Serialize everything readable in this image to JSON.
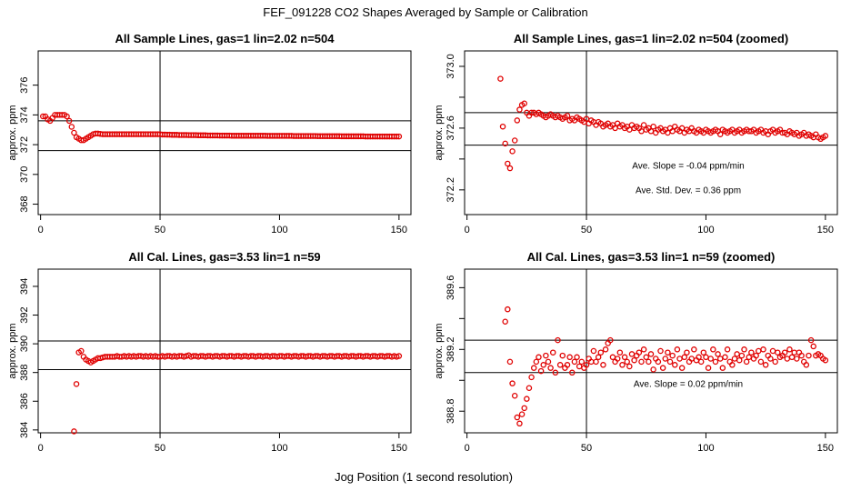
{
  "main_title": "FEF_091228  CO2 Shapes Averaged by Sample or Calibration",
  "xlabel": "Jog Position (1 second resolution)",
  "colors": {
    "points": "#e00000",
    "lines": "#000000"
  },
  "chart_data": [
    {
      "type": "scatter",
      "title": "All Sample Lines, gas=1 lin=2.02 n=504",
      "ylabel": "approx. ppm",
      "xlim": [
        -1,
        155
      ],
      "ylim": [
        367.3,
        378.3
      ],
      "xticks": [
        "0",
        "50",
        "100",
        "150"
      ],
      "xtick_values": [
        0,
        50,
        100,
        150
      ],
      "yticks": [
        "368",
        "370",
        "372",
        "374",
        "376"
      ],
      "ytick_values": [
        368,
        370,
        372,
        374,
        376
      ],
      "vline": 50,
      "hlines": [
        373.6,
        371.6
      ],
      "x": [
        1,
        2,
        3,
        4,
        5,
        6,
        7,
        8,
        9,
        10,
        11,
        12,
        13,
        14,
        15,
        16,
        17,
        18,
        19,
        20,
        21,
        22,
        23,
        24,
        25,
        26,
        27,
        28,
        29,
        30,
        31,
        32,
        33,
        34,
        35,
        36,
        37,
        38,
        39,
        40,
        41,
        42,
        43,
        44,
        45,
        46,
        47,
        48,
        49,
        50,
        51,
        52,
        53,
        54,
        55,
        56,
        57,
        58,
        59,
        60,
        61,
        62,
        63,
        64,
        65,
        66,
        67,
        68,
        69,
        70,
        71,
        72,
        73,
        74,
        75,
        76,
        77,
        78,
        79,
        80,
        81,
        82,
        83,
        84,
        85,
        86,
        87,
        88,
        89,
        90,
        91,
        92,
        93,
        94,
        95,
        96,
        97,
        98,
        99,
        100,
        101,
        102,
        103,
        104,
        105,
        106,
        107,
        108,
        109,
        110,
        111,
        112,
        113,
        114,
        115,
        116,
        117,
        118,
        119,
        120,
        121,
        122,
        123,
        124,
        125,
        126,
        127,
        128,
        129,
        130,
        131,
        132,
        133,
        134,
        135,
        136,
        137,
        138,
        139,
        140,
        141,
        142,
        143,
        144,
        145,
        146,
        147,
        148,
        149,
        150
      ],
      "y": [
        373.9,
        373.9,
        373.7,
        373.6,
        373.8,
        374.0,
        374.0,
        374.0,
        374.0,
        374.0,
        373.9,
        373.6,
        373.2,
        372.8,
        372.5,
        372.4,
        372.3,
        372.3,
        372.4,
        372.5,
        372.6,
        372.7,
        372.75,
        372.75,
        372.72,
        372.7,
        372.7,
        372.7,
        372.7,
        372.7,
        372.7,
        372.7,
        372.7,
        372.7,
        372.7,
        372.7,
        372.7,
        372.7,
        372.7,
        372.7,
        372.7,
        372.7,
        372.7,
        372.7,
        372.7,
        372.7,
        372.7,
        372.7,
        372.7,
        372.7,
        372.68,
        372.68,
        372.67,
        372.67,
        372.66,
        372.66,
        372.66,
        372.65,
        372.65,
        372.65,
        372.65,
        372.64,
        372.64,
        372.64,
        372.64,
        372.63,
        372.63,
        372.63,
        372.63,
        372.62,
        372.62,
        372.62,
        372.62,
        372.62,
        372.61,
        372.61,
        372.61,
        372.61,
        372.61,
        372.6,
        372.6,
        372.6,
        372.6,
        372.6,
        372.6,
        372.6,
        372.6,
        372.6,
        372.6,
        372.6,
        372.6,
        372.6,
        372.6,
        372.6,
        372.59,
        372.59,
        372.59,
        372.59,
        372.59,
        372.59,
        372.59,
        372.59,
        372.59,
        372.59,
        372.59,
        372.58,
        372.58,
        372.58,
        372.58,
        372.58,
        372.58,
        372.58,
        372.58,
        372.58,
        372.58,
        372.57,
        372.57,
        372.57,
        372.57,
        372.57,
        372.57,
        372.57,
        372.57,
        372.57,
        372.57,
        372.56,
        372.56,
        372.56,
        372.56,
        372.56,
        372.56,
        372.56,
        372.56,
        372.56,
        372.56,
        372.55,
        372.55,
        372.55,
        372.55,
        372.55,
        372.55,
        372.55,
        372.55,
        372.55,
        372.55,
        372.55,
        372.55,
        372.55,
        372.55,
        372.55
      ],
      "annotations": []
    },
    {
      "type": "scatter",
      "title": "All Sample Lines, gas=1 lin=2.02 n=504 (zoomed)",
      "ylabel": "approx. ppm",
      "xlim": [
        -1,
        155
      ],
      "ylim": [
        372.04,
        373.1
      ],
      "xticks": [
        "0",
        "50",
        "100",
        "150"
      ],
      "xtick_values": [
        0,
        50,
        100,
        150
      ],
      "yticks": [
        "372.2",
        "372.6",
        "373.0"
      ],
      "ytick_values": [
        372.2,
        372.6,
        373.0
      ],
      "ytick_minor": [
        372.4,
        372.8
      ],
      "vline": 50,
      "hlines": [
        372.7,
        372.49
      ],
      "x": [
        14,
        15,
        16,
        17,
        18,
        19,
        20,
        21,
        22,
        23,
        24,
        25,
        26,
        27,
        28,
        29,
        30,
        31,
        32,
        33,
        34,
        35,
        36,
        37,
        38,
        39,
        40,
        41,
        42,
        43,
        44,
        45,
        46,
        47,
        48,
        49,
        50,
        51,
        52,
        53,
        54,
        55,
        56,
        57,
        58,
        59,
        60,
        61,
        62,
        63,
        64,
        65,
        66,
        67,
        68,
        69,
        70,
        71,
        72,
        73,
        74,
        75,
        76,
        77,
        78,
        79,
        80,
        81,
        82,
        83,
        84,
        85,
        86,
        87,
        88,
        89,
        90,
        91,
        92,
        93,
        94,
        95,
        96,
        97,
        98,
        99,
        100,
        101,
        102,
        103,
        104,
        105,
        106,
        107,
        108,
        109,
        110,
        111,
        112,
        113,
        114,
        115,
        116,
        117,
        118,
        119,
        120,
        121,
        122,
        123,
        124,
        125,
        126,
        127,
        128,
        129,
        130,
        131,
        132,
        133,
        134,
        135,
        136,
        137,
        138,
        139,
        140,
        141,
        142,
        143,
        144,
        145,
        146,
        147,
        148,
        149,
        150
      ],
      "y": [
        372.92,
        372.61,
        372.5,
        372.37,
        372.34,
        372.45,
        372.52,
        372.65,
        372.72,
        372.75,
        372.76,
        372.7,
        372.68,
        372.7,
        372.7,
        372.69,
        372.7,
        372.69,
        372.68,
        372.67,
        372.68,
        372.69,
        372.68,
        372.67,
        372.68,
        372.67,
        372.66,
        372.67,
        372.68,
        372.65,
        372.66,
        372.65,
        372.67,
        372.66,
        372.65,
        372.64,
        372.66,
        372.63,
        372.65,
        372.64,
        372.62,
        372.64,
        372.63,
        372.61,
        372.62,
        372.63,
        372.61,
        372.62,
        372.6,
        372.63,
        372.61,
        372.62,
        372.6,
        372.61,
        372.59,
        372.62,
        372.6,
        372.61,
        372.6,
        372.58,
        372.62,
        372.59,
        372.6,
        372.58,
        372.61,
        372.57,
        372.59,
        372.6,
        372.58,
        372.59,
        372.57,
        372.6,
        372.58,
        372.61,
        372.59,
        372.58,
        372.6,
        372.57,
        372.59,
        372.58,
        372.6,
        372.58,
        372.57,
        372.59,
        372.58,
        372.57,
        372.59,
        372.58,
        372.57,
        372.58,
        372.59,
        372.58,
        372.56,
        372.59,
        372.58,
        372.57,
        372.58,
        372.59,
        372.57,
        372.58,
        372.59,
        372.57,
        372.58,
        372.59,
        372.58,
        372.58,
        372.59,
        372.57,
        372.58,
        372.59,
        372.57,
        372.58,
        372.56,
        372.58,
        372.59,
        372.57,
        372.58,
        372.59,
        372.57,
        372.57,
        372.56,
        372.58,
        372.57,
        372.56,
        372.57,
        372.55,
        372.56,
        372.57,
        372.55,
        372.56,
        372.55,
        372.54,
        372.56,
        372.54,
        372.53,
        372.54,
        372.55
      ],
      "annotations": [
        "Ave. Slope =  -0.04  ppm/min",
        "Ave. Std. Dev. =  0.36  ppm"
      ]
    },
    {
      "type": "scatter",
      "title": "All Cal. Lines, gas=3.53 lin=1 n=59",
      "ylabel": "approx. ppm",
      "xlim": [
        -1,
        155
      ],
      "ylim": [
        383.8,
        395.2
      ],
      "xticks": [
        "0",
        "50",
        "100",
        "150"
      ],
      "xtick_values": [
        0,
        50,
        100,
        150
      ],
      "yticks": [
        "384",
        "386",
        "388",
        "390",
        "392",
        "394"
      ],
      "ytick_values": [
        384,
        386,
        388,
        390,
        392,
        394
      ],
      "vline": 50,
      "hlines": [
        390.2,
        388.2
      ],
      "x": [
        14,
        15,
        16,
        17,
        18,
        19,
        20,
        21,
        22,
        23,
        24,
        25,
        26,
        27,
        28,
        29,
        30,
        31,
        32,
        33,
        34,
        35,
        36,
        37,
        38,
        39,
        40,
        41,
        42,
        43,
        44,
        45,
        46,
        47,
        48,
        49,
        50,
        51,
        52,
        53,
        54,
        55,
        56,
        57,
        58,
        59,
        60,
        61,
        62,
        63,
        64,
        65,
        66,
        67,
        68,
        69,
        70,
        71,
        72,
        73,
        74,
        75,
        76,
        77,
        78,
        79,
        80,
        81,
        82,
        83,
        84,
        85,
        86,
        87,
        88,
        89,
        90,
        91,
        92,
        93,
        94,
        95,
        96,
        97,
        98,
        99,
        100,
        101,
        102,
        103,
        104,
        105,
        106,
        107,
        108,
        109,
        110,
        111,
        112,
        113,
        114,
        115,
        116,
        117,
        118,
        119,
        120,
        121,
        122,
        123,
        124,
        125,
        126,
        127,
        128,
        129,
        130,
        131,
        132,
        133,
        134,
        135,
        136,
        137,
        138,
        139,
        140,
        141,
        142,
        143,
        144,
        145,
        146,
        147,
        148,
        149,
        150
      ],
      "y": [
        383.9,
        387.2,
        389.4,
        389.5,
        389.1,
        388.9,
        388.8,
        388.7,
        388.8,
        388.9,
        389.0,
        389.0,
        389.05,
        389.1,
        389.1,
        389.1,
        389.1,
        389.1,
        389.15,
        389.1,
        389.1,
        389.15,
        389.1,
        389.15,
        389.1,
        389.15,
        389.1,
        389.15,
        389.15,
        389.1,
        389.15,
        389.1,
        389.15,
        389.1,
        389.15,
        389.1,
        389.1,
        389.15,
        389.1,
        389.15,
        389.15,
        389.1,
        389.15,
        389.1,
        389.15,
        389.15,
        389.1,
        389.15,
        389.2,
        389.1,
        389.15,
        389.15,
        389.1,
        389.15,
        389.15,
        389.1,
        389.15,
        389.15,
        389.1,
        389.15,
        389.15,
        389.1,
        389.15,
        389.15,
        389.1,
        389.15,
        389.15,
        389.1,
        389.15,
        389.15,
        389.1,
        389.15,
        389.15,
        389.1,
        389.15,
        389.15,
        389.1,
        389.15,
        389.15,
        389.1,
        389.15,
        389.15,
        389.1,
        389.15,
        389.15,
        389.1,
        389.15,
        389.15,
        389.1,
        389.15,
        389.15,
        389.1,
        389.15,
        389.15,
        389.1,
        389.15,
        389.15,
        389.1,
        389.15,
        389.15,
        389.1,
        389.15,
        389.15,
        389.1,
        389.15,
        389.15,
        389.1,
        389.15,
        389.15,
        389.1,
        389.15,
        389.15,
        389.1,
        389.15,
        389.15,
        389.1,
        389.15,
        389.15,
        389.1,
        389.15,
        389.15,
        389.1,
        389.15,
        389.15,
        389.1,
        389.15,
        389.15,
        389.1,
        389.15,
        389.15,
        389.1,
        389.15,
        389.15,
        389.1,
        389.15,
        389.1,
        389.15
      ],
      "annotations": []
    },
    {
      "type": "scatter",
      "title": "All Cal. Lines, gas=3.53 lin=1 n=59 (zoomed)",
      "ylabel": "approx. ppm",
      "xlim": [
        -1,
        155
      ],
      "ylim": [
        388.66,
        389.72
      ],
      "xticks": [
        "0",
        "50",
        "100",
        "150"
      ],
      "xtick_values": [
        0,
        50,
        100,
        150
      ],
      "yticks": [
        "388.8",
        "389.2",
        "389.6"
      ],
      "ytick_values": [
        388.8,
        389.2,
        389.6
      ],
      "ytick_minor": [
        389.0,
        389.4
      ],
      "vline": 50,
      "hlines": [
        389.26,
        389.05
      ],
      "x": [
        16,
        17,
        18,
        19,
        20,
        21,
        22,
        23,
        24,
        25,
        26,
        27,
        28,
        29,
        30,
        31,
        32,
        33,
        34,
        35,
        36,
        37,
        38,
        39,
        40,
        41,
        42,
        43,
        44,
        45,
        46,
        47,
        48,
        49,
        50,
        51,
        52,
        53,
        54,
        55,
        56,
        57,
        58,
        59,
        60,
        61,
        62,
        63,
        64,
        65,
        66,
        67,
        68,
        69,
        70,
        71,
        72,
        73,
        74,
        75,
        76,
        77,
        78,
        79,
        80,
        81,
        82,
        83,
        84,
        85,
        86,
        87,
        88,
        89,
        90,
        91,
        92,
        93,
        94,
        95,
        96,
        97,
        98,
        99,
        100,
        101,
        102,
        103,
        104,
        105,
        106,
        107,
        108,
        109,
        110,
        111,
        112,
        113,
        114,
        115,
        116,
        117,
        118,
        119,
        120,
        121,
        122,
        123,
        124,
        125,
        126,
        127,
        128,
        129,
        130,
        131,
        132,
        133,
        134,
        135,
        136,
        137,
        138,
        139,
        140,
        141,
        142,
        143,
        144,
        145,
        146,
        147,
        148,
        149,
        150
      ],
      "y": [
        389.38,
        389.46,
        389.12,
        388.98,
        388.9,
        388.76,
        388.72,
        388.78,
        388.82,
        388.88,
        388.95,
        389.02,
        389.08,
        389.12,
        389.15,
        389.06,
        389.1,
        389.16,
        389.12,
        389.08,
        389.18,
        389.05,
        389.26,
        389.1,
        389.16,
        389.08,
        389.1,
        389.15,
        389.05,
        389.12,
        389.15,
        389.09,
        389.12,
        389.08,
        389.1,
        389.14,
        389.12,
        389.19,
        389.12,
        389.15,
        389.18,
        389.1,
        389.2,
        389.24,
        389.26,
        389.15,
        389.12,
        389.14,
        389.18,
        389.1,
        389.15,
        389.12,
        389.09,
        389.17,
        389.13,
        389.16,
        389.18,
        389.12,
        389.2,
        389.15,
        389.12,
        389.17,
        389.07,
        389.14,
        389.12,
        389.19,
        389.08,
        389.14,
        389.18,
        389.12,
        389.16,
        389.1,
        389.2,
        389.14,
        389.08,
        389.15,
        389.18,
        389.12,
        389.14,
        389.2,
        389.13,
        389.15,
        389.12,
        389.18,
        389.15,
        389.08,
        389.14,
        389.2,
        389.12,
        389.17,
        389.14,
        389.08,
        389.15,
        389.2,
        389.12,
        389.1,
        389.14,
        389.17,
        389.13,
        389.16,
        389.2,
        389.12,
        389.15,
        389.18,
        389.14,
        389.16,
        389.19,
        389.12,
        389.2,
        389.1,
        389.16,
        389.14,
        389.19,
        389.12,
        389.18,
        389.15,
        389.16,
        389.18,
        389.14,
        389.2,
        389.15,
        389.18,
        389.14,
        389.18,
        389.16,
        389.12,
        389.1,
        389.16,
        389.26,
        389.22,
        389.16,
        389.17,
        389.16,
        389.14,
        389.13
      ],
      "annotations": [
        "Ave. Slope =  0.02  ppm/min"
      ]
    }
  ]
}
